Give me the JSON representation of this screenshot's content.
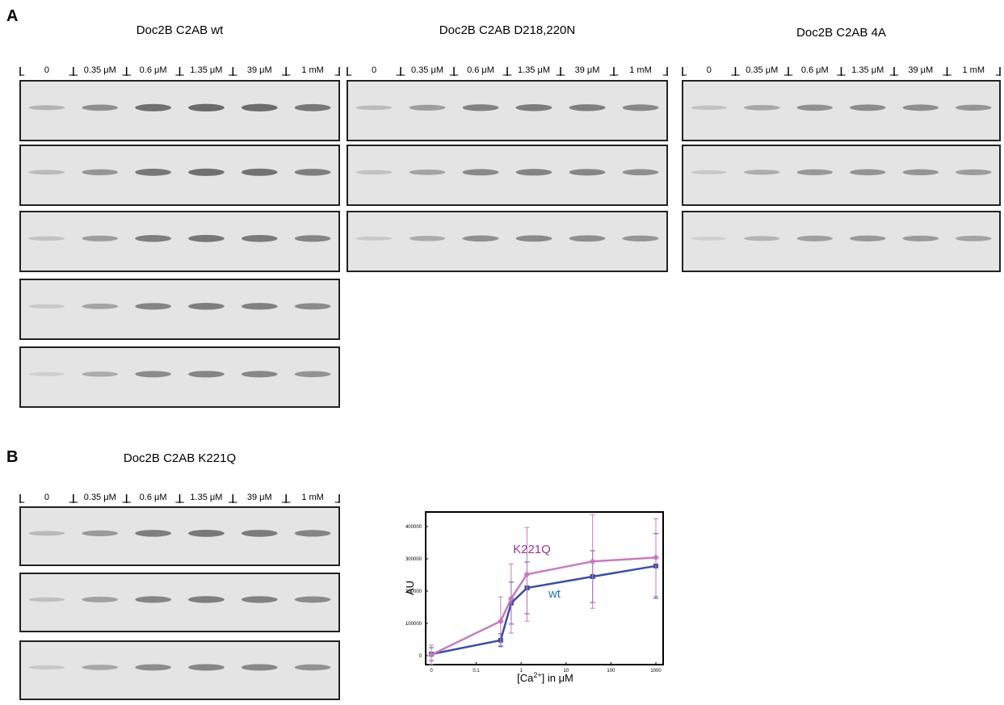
{
  "panels": [
    {
      "label": "A",
      "gels": [
        {
          "title": "Doc2B C2AB wt",
          "lanes": [
            "0",
            "0.35 μM",
            "0.6 μM",
            "1.35 μM",
            "39 μM",
            "1 mM"
          ]
        },
        {
          "title": "Doc2B C2AB D218,220N",
          "lanes": [
            "0",
            "0.35 μM",
            "0.6 μM",
            "1.35 μM",
            "39 μM",
            "1 mM"
          ]
        },
        {
          "title": "Doc2B C2AB 4A",
          "lanes": [
            "0",
            "0.35 μM",
            "0.6 μM",
            "1.35 μM",
            "39 μM",
            "1 mM"
          ]
        }
      ]
    },
    {
      "label": "B",
      "gels": [
        {
          "title": "Doc2B C2AB K221Q",
          "lanes": [
            "0",
            "0.35 μM",
            "0.6 μM",
            "1.35 μM",
            "39 μM",
            "1 mM"
          ]
        }
      ]
    }
  ],
  "chart_data": {
    "type": "line",
    "ylabel": "AU",
    "xlabel": [
      "[Ca",
      "2+",
      "] in μM"
    ],
    "xlog": true,
    "x": [
      0,
      0.35,
      0.6,
      1.35,
      39,
      1000
    ],
    "xticks": [
      0,
      0.1,
      1,
      10,
      100,
      1000
    ],
    "ylim": [
      -27500,
      445000
    ],
    "yticks": [
      0,
      100000,
      200000,
      300000,
      400000
    ],
    "series": [
      {
        "name": "wt",
        "color": "#3d4ea0",
        "label_color": "#1f74b8",
        "marker": "square",
        "values": [
          5000,
          48000,
          163000,
          210000,
          245000,
          278000
        ],
        "errors": [
          20000,
          20000,
          65000,
          80000,
          80000,
          100000
        ]
      },
      {
        "name": "K221Q",
        "color": "#c57bc0",
        "label_color": "#9b3496",
        "marker": "diamond",
        "values": [
          3000,
          107000,
          177000,
          252000,
          292000,
          304000
        ],
        "errors": [
          30000,
          75000,
          107000,
          145000,
          145000,
          120000
        ]
      }
    ]
  }
}
